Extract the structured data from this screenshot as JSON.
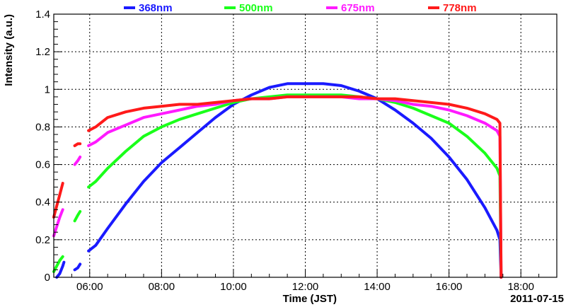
{
  "chart_data": {
    "type": "line",
    "xlabel": "Time (JST)",
    "ylabel": "Intensity (a.u.)",
    "date_label": "2011-07-15",
    "xlim": [
      "05:00",
      "19:00"
    ],
    "ylim": [
      0,
      1.4
    ],
    "grid": true,
    "legend_position": "top",
    "x_ticks": [
      "06:00",
      "08:00",
      "10:00",
      "12:00",
      "14:00",
      "16:00",
      "18:00"
    ],
    "y_ticks": [
      "0",
      "0.2",
      "0.4",
      "0.6",
      "0.8",
      "1",
      "1.2",
      "1.4"
    ],
    "series": [
      {
        "name": "368nm",
        "color": "#1a1aff",
        "segments": [
          [
            [
              "05:05",
              0.0
            ],
            [
              "05:10",
              0.02
            ],
            [
              "05:15",
              0.06
            ],
            [
              "05:17",
              0.08
            ]
          ],
          [
            [
              "05:35",
              0.04
            ],
            [
              "05:40",
              0.05
            ],
            [
              "05:44",
              0.07
            ]
          ],
          [
            [
              "05:58",
              0.14
            ],
            [
              "06:10",
              0.17
            ],
            [
              "06:30",
              0.26
            ],
            [
              "07:00",
              0.39
            ],
            [
              "07:30",
              0.51
            ],
            [
              "08:00",
              0.61
            ],
            [
              "08:30",
              0.69
            ],
            [
              "09:00",
              0.77
            ],
            [
              "09:30",
              0.85
            ],
            [
              "10:00",
              0.92
            ],
            [
              "10:30",
              0.97
            ],
            [
              "11:00",
              1.01
            ],
            [
              "11:30",
              1.03
            ],
            [
              "12:00",
              1.03
            ],
            [
              "12:30",
              1.03
            ],
            [
              "13:00",
              1.02
            ],
            [
              "13:30",
              0.99
            ],
            [
              "14:00",
              0.95
            ],
            [
              "14:30",
              0.89
            ],
            [
              "15:00",
              0.82
            ],
            [
              "15:30",
              0.74
            ],
            [
              "16:00",
              0.64
            ],
            [
              "16:30",
              0.52
            ],
            [
              "17:00",
              0.37
            ],
            [
              "17:20",
              0.25
            ],
            [
              "17:25",
              0.2
            ],
            [
              "17:27",
              0.0
            ]
          ]
        ]
      },
      {
        "name": "500nm",
        "color": "#1aff1a",
        "segments": [
          [
            [
              "05:00",
              0.03
            ],
            [
              "05:05",
              0.06
            ],
            [
              "05:10",
              0.09
            ],
            [
              "05:15",
              0.11
            ]
          ],
          [
            [
              "05:35",
              0.3
            ],
            [
              "05:40",
              0.33
            ],
            [
              "05:44",
              0.35
            ]
          ],
          [
            [
              "05:58",
              0.48
            ],
            [
              "06:10",
              0.51
            ],
            [
              "06:30",
              0.58
            ],
            [
              "07:00",
              0.67
            ],
            [
              "07:30",
              0.75
            ],
            [
              "08:00",
              0.8
            ],
            [
              "08:30",
              0.84
            ],
            [
              "09:00",
              0.87
            ],
            [
              "09:30",
              0.9
            ],
            [
              "10:00",
              0.93
            ],
            [
              "10:30",
              0.95
            ],
            [
              "11:00",
              0.96
            ],
            [
              "11:30",
              0.97
            ],
            [
              "12:00",
              0.97
            ],
            [
              "12:30",
              0.97
            ],
            [
              "13:00",
              0.97
            ],
            [
              "13:30",
              0.96
            ],
            [
              "14:00",
              0.95
            ],
            [
              "14:30",
              0.93
            ],
            [
              "15:00",
              0.9
            ],
            [
              "15:30",
              0.86
            ],
            [
              "16:00",
              0.82
            ],
            [
              "16:30",
              0.75
            ],
            [
              "17:00",
              0.66
            ],
            [
              "17:20",
              0.58
            ],
            [
              "17:25",
              0.54
            ],
            [
              "17:27",
              0.0
            ]
          ]
        ]
      },
      {
        "name": "675nm",
        "color": "#ff1aff",
        "segments": [
          [
            [
              "05:00",
              0.22
            ],
            [
              "05:05",
              0.27
            ],
            [
              "05:10",
              0.32
            ],
            [
              "05:15",
              0.36
            ]
          ],
          [
            [
              "05:35",
              0.6
            ],
            [
              "05:40",
              0.62
            ],
            [
              "05:44",
              0.64
            ]
          ],
          [
            [
              "05:58",
              0.7
            ],
            [
              "06:10",
              0.72
            ],
            [
              "06:30",
              0.77
            ],
            [
              "07:00",
              0.81
            ],
            [
              "07:30",
              0.85
            ],
            [
              "08:00",
              0.87
            ],
            [
              "08:30",
              0.89
            ],
            [
              "09:00",
              0.91
            ],
            [
              "09:30",
              0.92
            ],
            [
              "10:00",
              0.94
            ],
            [
              "10:30",
              0.95
            ],
            [
              "11:00",
              0.95
            ],
            [
              "11:30",
              0.96
            ],
            [
              "12:00",
              0.96
            ],
            [
              "12:30",
              0.96
            ],
            [
              "13:00",
              0.96
            ],
            [
              "13:30",
              0.95
            ],
            [
              "14:00",
              0.95
            ],
            [
              "14:30",
              0.94
            ],
            [
              "15:00",
              0.92
            ],
            [
              "15:30",
              0.91
            ],
            [
              "16:00",
              0.89
            ],
            [
              "16:30",
              0.86
            ],
            [
              "17:00",
              0.82
            ],
            [
              "17:20",
              0.78
            ],
            [
              "17:25",
              0.75
            ],
            [
              "17:27",
              0.0
            ]
          ]
        ]
      },
      {
        "name": "778nm",
        "color": "#ff1a1a",
        "segments": [
          [
            [
              "05:00",
              0.32
            ],
            [
              "05:05",
              0.38
            ],
            [
              "05:10",
              0.44
            ],
            [
              "05:15",
              0.5
            ]
          ],
          [
            [
              "05:35",
              0.7
            ],
            [
              "05:40",
              0.71
            ],
            [
              "05:44",
              0.71
            ]
          ],
          [
            [
              "05:58",
              0.78
            ],
            [
              "06:10",
              0.8
            ],
            [
              "06:30",
              0.85
            ],
            [
              "07:00",
              0.88
            ],
            [
              "07:30",
              0.9
            ],
            [
              "08:00",
              0.91
            ],
            [
              "08:30",
              0.92
            ],
            [
              "09:00",
              0.92
            ],
            [
              "09:30",
              0.93
            ],
            [
              "10:00",
              0.94
            ],
            [
              "10:30",
              0.95
            ],
            [
              "11:00",
              0.95
            ],
            [
              "11:30",
              0.96
            ],
            [
              "12:00",
              0.96
            ],
            [
              "12:30",
              0.96
            ],
            [
              "13:00",
              0.96
            ],
            [
              "13:30",
              0.96
            ],
            [
              "14:00",
              0.95
            ],
            [
              "14:30",
              0.95
            ],
            [
              "15:00",
              0.94
            ],
            [
              "15:30",
              0.93
            ],
            [
              "16:00",
              0.92
            ],
            [
              "16:30",
              0.9
            ],
            [
              "17:00",
              0.87
            ],
            [
              "17:20",
              0.84
            ],
            [
              "17:25",
              0.82
            ],
            [
              "17:27",
              0.0
            ]
          ]
        ]
      }
    ]
  }
}
